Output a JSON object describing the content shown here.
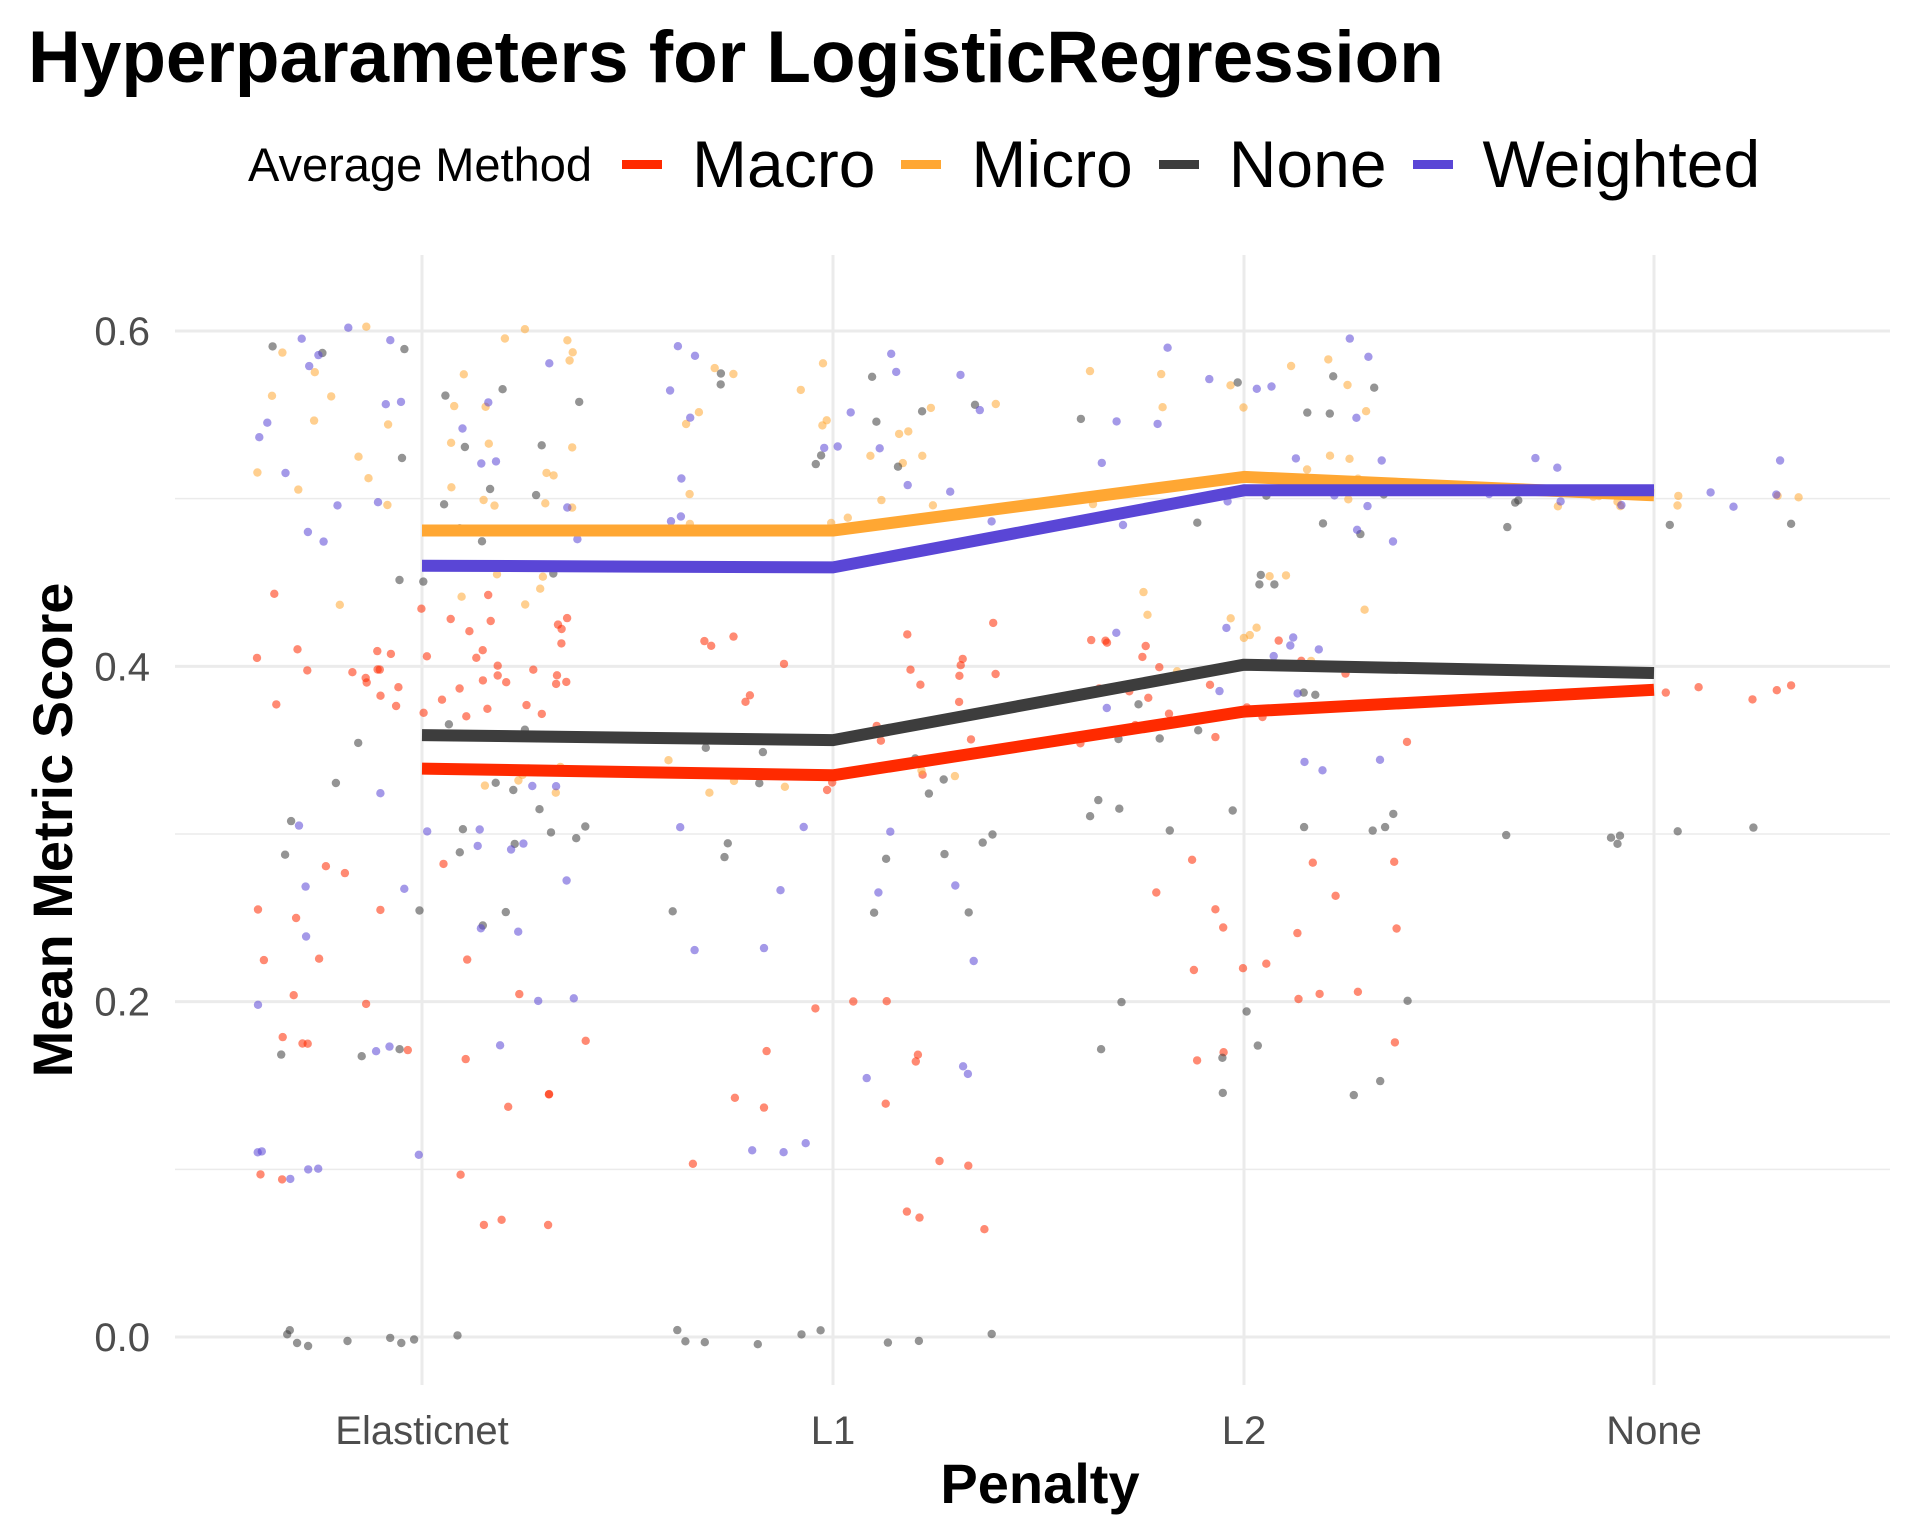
{
  "chart_data": {
    "type": "line",
    "title": "Hyperparameters for LogisticRegression",
    "xlabel": "Penalty",
    "ylabel": "Mean Metric Score",
    "categories": [
      "Elasticnet",
      "L1",
      "L2",
      "None"
    ],
    "ylim": [
      -0.025,
      0.63
    ],
    "yticks": [
      0.0,
      0.2,
      0.4,
      0.6
    ],
    "ytick_labels": [
      "0.0",
      "0.2",
      "0.4",
      "0.6"
    ],
    "grid": true,
    "legend": {
      "title": "Average Method",
      "position": "top"
    },
    "series": [
      {
        "name": "Macro",
        "color": "#ff2a00",
        "values": [
          0.339,
          0.335,
          0.373,
          0.386
        ]
      },
      {
        "name": "Micro",
        "color": "#ffa733",
        "values": [
          0.481,
          0.481,
          0.513,
          0.502
        ]
      },
      {
        "name": "None",
        "color": "#3d3d3d",
        "values": [
          0.359,
          0.356,
          0.401,
          0.396
        ]
      },
      {
        "name": "Weighted",
        "color": "#5a46d6",
        "values": [
          0.46,
          0.459,
          0.505,
          0.505
        ]
      }
    ],
    "jitter_points": [
      {
        "series": "Macro",
        "clusters": [
          {
            "category": "Elasticnet",
            "values": [
              0.4,
              0.39,
              0.38,
              0.41,
              0.42,
              0.4,
              0.39,
              0.38,
              0.4,
              0.41,
              0.39,
              0.37,
              0.43,
              0.2,
              0.18,
              0.17,
              0.14,
              0.1,
              0.07,
              0.25,
              0.22,
              0.28,
              0.44
            ]
          },
          {
            "category": "L1",
            "values": [
              0.41,
              0.39,
              0.38,
              0.4,
              0.42,
              0.36,
              0.33,
              0.2,
              0.17,
              0.14,
              0.1,
              0.07
            ]
          },
          {
            "category": "L2",
            "values": [
              0.42,
              0.41,
              0.4,
              0.39,
              0.38,
              0.37,
              0.36,
              0.26,
              0.24,
              0.22,
              0.2,
              0.17,
              0.28
            ]
          },
          {
            "category": "None",
            "values": [
              0.385,
              0.385
            ]
          }
        ]
      },
      {
        "series": "Micro",
        "clusters": [
          {
            "category": "Elasticnet",
            "values": [
              0.5,
              0.51,
              0.52,
              0.55,
              0.58,
              0.6,
              0.53,
              0.56,
              0.44,
              0.33,
              0.34,
              0.45,
              0.5,
              0.59
            ]
          },
          {
            "category": "L1",
            "values": [
              0.58,
              0.55,
              0.54,
              0.52,
              0.5,
              0.49,
              0.33,
              0.34,
              0.56
            ]
          },
          {
            "category": "L2",
            "values": [
              0.58,
              0.57,
              0.55,
              0.52,
              0.51,
              0.5,
              0.45,
              0.43,
              0.42,
              0.4
            ]
          },
          {
            "category": "None",
            "values": [
              0.5,
              0.5,
              0.5
            ]
          }
        ]
      },
      {
        "series": "None",
        "clusters": [
          {
            "category": "Elasticnet",
            "values": [
              0.0,
              0.0,
              0.0,
              0.25,
              0.3,
              0.31,
              0.33,
              0.36,
              0.48,
              0.5,
              0.53,
              0.56,
              0.59,
              0.29,
              0.17,
              0.45
            ]
          },
          {
            "category": "L1",
            "values": [
              0.0,
              0.0,
              0.0,
              0.25,
              0.3,
              0.33,
              0.35,
              0.55,
              0.57,
              0.52,
              0.29
            ]
          },
          {
            "category": "L2",
            "values": [
              0.2,
              0.17,
              0.15,
              0.3,
              0.32,
              0.36,
              0.38,
              0.45,
              0.48,
              0.5,
              0.57,
              0.55,
              0.31
            ]
          },
          {
            "category": "None",
            "values": [
              0.48,
              0.5,
              0.3,
              0.3
            ]
          }
        ]
      },
      {
        "series": "Weighted",
        "clusters": [
          {
            "category": "Elasticnet",
            "values": [
              0.6,
              0.58,
              0.56,
              0.54,
              0.52,
              0.5,
              0.48,
              0.3,
              0.27,
              0.24,
              0.2,
              0.17,
              0.11,
              0.1,
              0.29,
              0.33
            ]
          },
          {
            "category": "L1",
            "values": [
              0.59,
              0.57,
              0.55,
              0.53,
              0.51,
              0.49,
              0.3,
              0.27,
              0.23,
              0.16,
              0.11
            ]
          },
          {
            "category": "L2",
            "values": [
              0.59,
              0.57,
              0.55,
              0.52,
              0.5,
              0.48,
              0.42,
              0.38,
              0.34,
              0.41
            ]
          },
          {
            "category": "None",
            "values": [
              0.52,
              0.5,
              0.5
            ]
          }
        ]
      }
    ]
  }
}
